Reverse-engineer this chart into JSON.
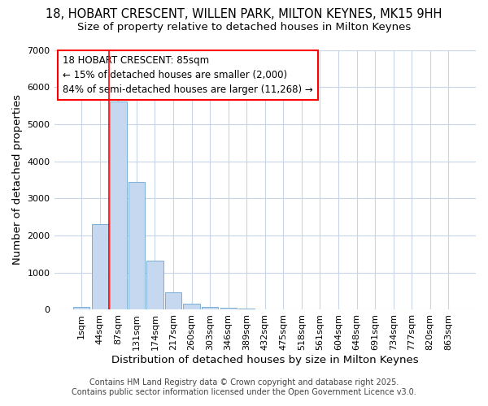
{
  "title1": "18, HOBART CRESCENT, WILLEN PARK, MILTON KEYNES, MK15 9HH",
  "title2": "Size of property relative to detached houses in Milton Keynes",
  "xlabel": "Distribution of detached houses by size in Milton Keynes",
  "ylabel": "Number of detached properties",
  "categories": [
    "1sqm",
    "44sqm",
    "87sqm",
    "131sqm",
    "174sqm",
    "217sqm",
    "260sqm",
    "303sqm",
    "346sqm",
    "389sqm",
    "432sqm",
    "475sqm",
    "518sqm",
    "561sqm",
    "604sqm",
    "648sqm",
    "691sqm",
    "734sqm",
    "777sqm",
    "820sqm",
    "863sqm"
  ],
  "values": [
    80,
    2300,
    5600,
    3450,
    1330,
    480,
    160,
    80,
    60,
    40,
    0,
    0,
    0,
    0,
    0,
    0,
    0,
    0,
    0,
    0,
    0
  ],
  "bar_color": "#c5d8f0",
  "bar_edge_color": "#7aaed6",
  "red_line_index": 2,
  "annotation_text": "18 HOBART CRESCENT: 85sqm\n← 15% of detached houses are smaller (2,000)\n84% of semi-detached houses are larger (11,268) →",
  "annotation_box_color": "white",
  "annotation_box_edge_color": "red",
  "ylim": [
    0,
    7000
  ],
  "yticks": [
    0,
    1000,
    2000,
    3000,
    4000,
    5000,
    6000,
    7000
  ],
  "footer1": "Contains HM Land Registry data © Crown copyright and database right 2025.",
  "footer2": "Contains public sector information licensed under the Open Government Licence v3.0.",
  "bg_color": "#ffffff",
  "plot_bg_color": "#ffffff",
  "grid_color": "#c8d4e8",
  "title_fontsize": 10.5,
  "subtitle_fontsize": 9.5,
  "tick_fontsize": 8,
  "axis_label_fontsize": 9.5,
  "annotation_fontsize": 8.5,
  "footer_fontsize": 7
}
